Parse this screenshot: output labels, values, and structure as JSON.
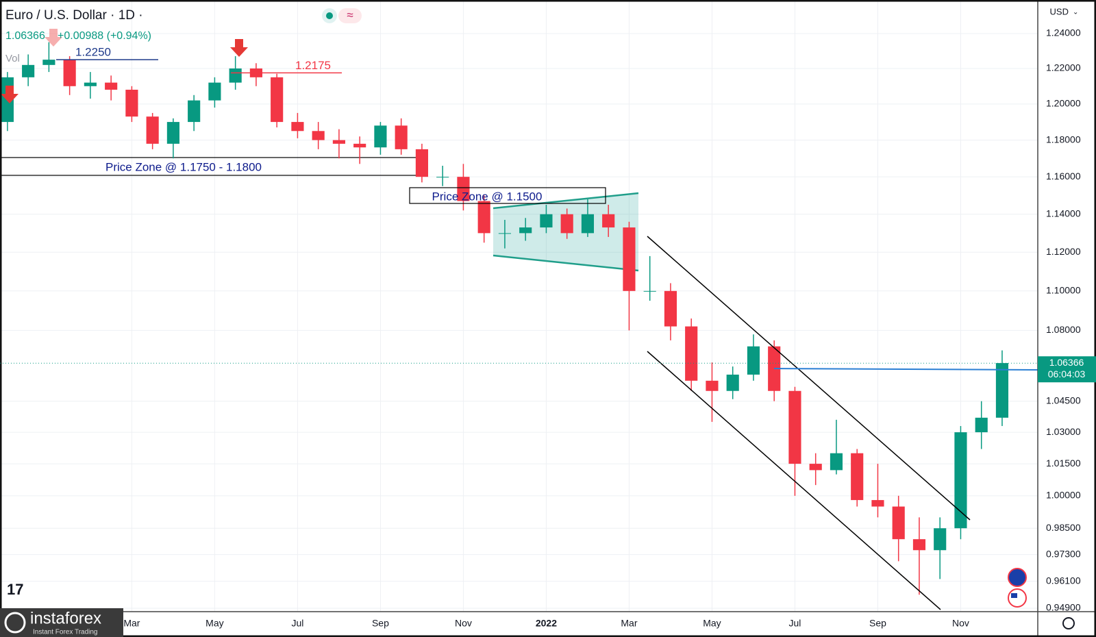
{
  "chart_data": {
    "type": "candlestick",
    "title": "Euro / U.S. Dollar · 1D ·",
    "last": 1.06366,
    "change": "+0.00988 (+0.94%)",
    "volume_label": "Vol",
    "countdown": "06:04:03",
    "currency": "USD",
    "log_scale": true,
    "grid": true,
    "up_color": "#089981",
    "down_color": "#f23645",
    "x": [
      -1.0,
      -0.5,
      0.0,
      0.5,
      1.0,
      1.5,
      2.0,
      2.5,
      3.0,
      3.5,
      4.0,
      4.5,
      5.0,
      5.5,
      6.0,
      6.5,
      7.0,
      7.5,
      8.0,
      8.5,
      9.0,
      9.5,
      10.0,
      10.5,
      11.0,
      11.5,
      12.0,
      12.5,
      13.0,
      13.5,
      14.0,
      14.5,
      15.0,
      15.5,
      16.0,
      16.5,
      17.0,
      17.5,
      18.0,
      18.5,
      19.0,
      19.5,
      20.0,
      20.5,
      21.0,
      21.5,
      22.0,
      22.5,
      23.0
    ],
    "open": [
      1.19,
      1.215,
      1.222,
      1.225,
      1.21,
      1.212,
      1.208,
      1.193,
      1.178,
      1.19,
      1.202,
      1.212,
      1.22,
      1.215,
      1.19,
      1.185,
      1.18,
      1.178,
      1.176,
      1.188,
      1.175,
      1.16,
      1.16,
      1.147,
      1.13,
      1.13,
      1.133,
      1.14,
      1.13,
      1.14,
      1.133,
      1.1,
      1.1,
      1.082,
      1.055,
      1.05,
      1.058,
      1.072,
      1.05,
      1.015,
      1.012,
      1.02,
      0.998,
      0.995,
      0.98,
      0.975,
      0.985,
      1.03,
      1.037
    ],
    "high": [
      1.218,
      1.228,
      1.235,
      1.227,
      1.218,
      1.216,
      1.21,
      1.195,
      1.192,
      1.205,
      1.215,
      1.227,
      1.223,
      1.217,
      1.195,
      1.19,
      1.186,
      1.182,
      1.19,
      1.192,
      1.178,
      1.166,
      1.167,
      1.15,
      1.137,
      1.138,
      1.145,
      1.143,
      1.148,
      1.145,
      1.136,
      1.118,
      1.104,
      1.086,
      1.064,
      1.062,
      1.078,
      1.075,
      1.052,
      1.02,
      1.036,
      1.022,
      1.015,
      1.0,
      0.99,
      0.99,
      1.033,
      1.045,
      1.07
    ],
    "low": [
      1.185,
      1.21,
      1.218,
      1.205,
      1.203,
      1.202,
      1.19,
      1.175,
      1.17,
      1.185,
      1.198,
      1.208,
      1.21,
      1.187,
      1.181,
      1.175,
      1.17,
      1.167,
      1.172,
      1.172,
      1.157,
      1.155,
      1.142,
      1.125,
      1.122,
      1.126,
      1.13,
      1.127,
      1.128,
      1.128,
      1.08,
      1.095,
      1.075,
      1.05,
      1.035,
      1.046,
      1.055,
      1.045,
      1.0,
      1.005,
      1.01,
      0.995,
      0.99,
      0.97,
      0.955,
      0.962,
      0.98,
      1.022,
      1.033
    ],
    "close": [
      1.215,
      1.222,
      1.225,
      1.21,
      1.212,
      1.208,
      1.193,
      1.178,
      1.19,
      1.202,
      1.212,
      1.22,
      1.215,
      1.19,
      1.185,
      1.18,
      1.178,
      1.176,
      1.188,
      1.175,
      1.16,
      1.16,
      1.147,
      1.13,
      1.13,
      1.133,
      1.14,
      1.13,
      1.14,
      1.133,
      1.1,
      1.1,
      1.082,
      1.055,
      1.05,
      1.058,
      1.072,
      1.05,
      1.015,
      1.012,
      1.02,
      0.998,
      0.995,
      0.98,
      0.975,
      0.985,
      1.03,
      1.037,
      1.0637
    ],
    "xlim": [
      -1.18,
      23.86
    ],
    "xticks": [
      {
        "value": 2,
        "label": "Mar"
      },
      {
        "value": 4,
        "label": "May"
      },
      {
        "value": 6,
        "label": "Jul"
      },
      {
        "value": 8,
        "label": "Sep"
      },
      {
        "value": 10,
        "label": "Nov"
      },
      {
        "value": 12,
        "label": "2022"
      },
      {
        "value": 14,
        "label": "Mar"
      },
      {
        "value": 16,
        "label": "May"
      },
      {
        "value": 18,
        "label": "Jul"
      },
      {
        "value": 20,
        "label": "Sep"
      },
      {
        "value": 22,
        "label": "Nov"
      }
    ],
    "ylim": [
      0.9475,
      1.2595
    ],
    "yticks": [
      {
        "value": 1.24,
        "label": "1.24000"
      },
      {
        "value": 1.22,
        "label": "1.22000"
      },
      {
        "value": 1.2,
        "label": "1.20000"
      },
      {
        "value": 1.18,
        "label": "1.18000"
      },
      {
        "value": 1.16,
        "label": "1.16000"
      },
      {
        "value": 1.14,
        "label": "1.14000"
      },
      {
        "value": 1.12,
        "label": "1.12000"
      },
      {
        "value": 1.1,
        "label": "1.10000"
      },
      {
        "value": 1.08,
        "label": "1.08000"
      },
      {
        "value": 1.045,
        "label": "1.04500"
      },
      {
        "value": 1.03,
        "label": "1.03000"
      },
      {
        "value": 1.015,
        "label": "1.01500"
      },
      {
        "value": 1,
        "label": "1.00000"
      },
      {
        "value": 0.985,
        "label": "0.98500"
      },
      {
        "value": 0.973,
        "label": "0.97300"
      },
      {
        "value": 0.961,
        "label": "0.96100"
      },
      {
        "value": 0.949,
        "label": "0.94900"
      }
    ],
    "levels": [
      {
        "value": 1.225,
        "label": "1.2250",
        "color": "#1e3a8a"
      },
      {
        "value": 1.2175,
        "label": "1.2175",
        "color": "#f23645"
      }
    ],
    "zones": [
      "Price Zone @ 1.1750 - 1.1800",
      "Price Zone @ 1.1500"
    ],
    "logo": {
      "name": "instaforex",
      "tagline": "Instant Forex Trading"
    }
  }
}
